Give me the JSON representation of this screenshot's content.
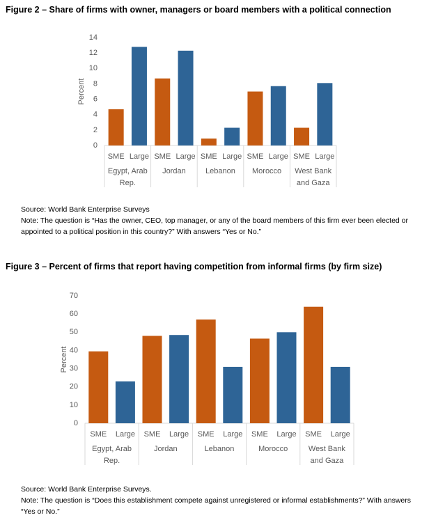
{
  "chart_data": [
    {
      "type": "bar",
      "title": "Figure 2 – Share of firms with owner, managers or board members with a political connection",
      "ylabel": "Percent",
      "categories": [
        "Egypt, Arab Rep.",
        "Jordan",
        "Lebanon",
        "Morocco",
        "West Bank and Gaza"
      ],
      "series": [
        {
          "name": "SME",
          "color": "#c55a11",
          "values": [
            4.7,
            8.7,
            0.9,
            7.0,
            2.3
          ]
        },
        {
          "name": "Large",
          "color": "#2e6496",
          "values": [
            12.8,
            12.3,
            2.3,
            7.7,
            8.1
          ]
        }
      ],
      "ylim": [
        0,
        14
      ],
      "yticks": [
        0,
        2,
        4,
        6,
        8,
        10,
        12,
        14
      ],
      "source": "Source: World Bank Enterprise Surveys",
      "note": "Note: The question is “Has the owner, CEO, top manager, or any of the board members of this firm ever been elected or appointed to a political position in this country?” With answers “Yes or No.”"
    },
    {
      "type": "bar",
      "title": "Figure 3 – Percent of firms that report having competition from informal firms (by firm size)",
      "ylabel": "Percent",
      "categories": [
        "Egypt, Arab Rep.",
        "Jordan",
        "Lebanon",
        "Morocco",
        "West Bank and Gaza"
      ],
      "series": [
        {
          "name": "SME",
          "color": "#c55a11",
          "values": [
            39.5,
            48,
            57,
            46.5,
            64
          ]
        },
        {
          "name": "Large",
          "color": "#2e6496",
          "values": [
            23,
            48.5,
            31,
            50,
            31
          ]
        }
      ],
      "ylim": [
        0,
        70
      ],
      "yticks": [
        0,
        10,
        20,
        30,
        40,
        50,
        60,
        70
      ],
      "source": "Source: World Bank Enterprise Surveys.",
      "note": "Note: The question is “Does this establishment compete against unregistered or informal establishments?” With answers “Yes or No.”"
    }
  ]
}
